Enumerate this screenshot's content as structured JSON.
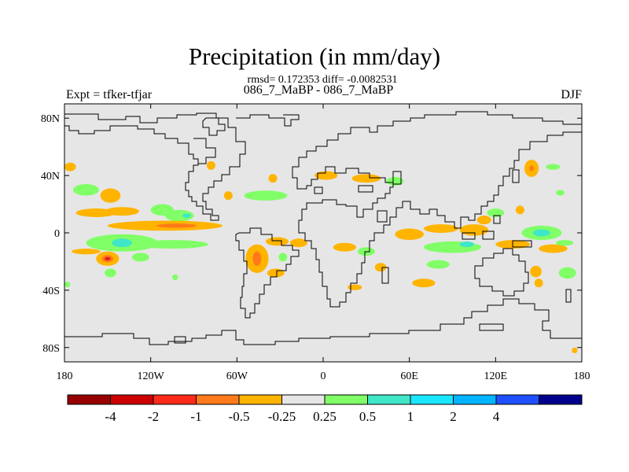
{
  "title": "Precipitation (in mm/day)",
  "stats_line": "rmsd= 0.172353 diff= -0.0082531",
  "case_line": "086_7_MaBP - 086_7_MaBP",
  "left_label": "Expt = tfker-tfjar",
  "right_label": "DJF",
  "map": {
    "lon_range": [
      -180,
      180
    ],
    "lat_range": [
      -90,
      90
    ],
    "background_color": "#e6e6e6",
    "y_ticks": [
      {
        "lat": 80,
        "label": "80N"
      },
      {
        "lat": 40,
        "label": "40N"
      },
      {
        "lat": 0,
        "label": "0"
      },
      {
        "lat": -40,
        "label": "40S"
      },
      {
        "lat": -80,
        "label": "80S"
      }
    ],
    "x_ticks": [
      {
        "lon": -180,
        "label": "180"
      },
      {
        "lon": -120,
        "label": "120W"
      },
      {
        "lon": -60,
        "label": "60W"
      },
      {
        "lon": 0,
        "label": "0"
      },
      {
        "lon": 60,
        "label": "60E"
      },
      {
        "lon": 120,
        "label": "120E"
      },
      {
        "lon": 180,
        "label": "180"
      }
    ],
    "anomaly_patches": [
      {
        "lon": -176,
        "lat": 46,
        "rx": 4,
        "ry": 3,
        "color": "#ffb400"
      },
      {
        "lon": -165,
        "lat": 30,
        "rx": 9,
        "ry": 4,
        "color": "#80ff66"
      },
      {
        "lon": -148,
        "lat": 26,
        "rx": 7,
        "ry": 5,
        "color": "#ffb400"
      },
      {
        "lon": -158,
        "lat": 14,
        "rx": 14,
        "ry": 3,
        "color": "#ffb400"
      },
      {
        "lon": -140,
        "lat": 15,
        "rx": 12,
        "ry": 3,
        "color": "#ffb400"
      },
      {
        "lon": -112,
        "lat": 16,
        "rx": 8,
        "ry": 4,
        "color": "#80ff66"
      },
      {
        "lon": -100,
        "lat": 12,
        "rx": 10,
        "ry": 4,
        "color": "#80ff66"
      },
      {
        "lon": -95,
        "lat": 12,
        "rx": 3,
        "ry": 1.5,
        "color": "#40e6c8"
      },
      {
        "lon": -110,
        "lat": 5,
        "rx": 40,
        "ry": 3.5,
        "color": "#ffb400"
      },
      {
        "lon": -102,
        "lat": 5,
        "rx": 14,
        "ry": 1.5,
        "color": "#ff7a1a"
      },
      {
        "lon": -140,
        "lat": -7,
        "rx": 25,
        "ry": 6,
        "color": "#80ff66"
      },
      {
        "lon": -140,
        "lat": -7,
        "rx": 7,
        "ry": 3,
        "color": "#40e6c8"
      },
      {
        "lon": -105,
        "lat": -8,
        "rx": 25,
        "ry": 3,
        "color": "#80ff66"
      },
      {
        "lon": -165,
        "lat": -13,
        "rx": 10,
        "ry": 2,
        "color": "#ffb400"
      },
      {
        "lon": -150,
        "lat": -18,
        "rx": 8,
        "ry": 5,
        "color": "#ffb400"
      },
      {
        "lon": -150,
        "lat": -18,
        "rx": 4,
        "ry": 2.5,
        "color": "#ff7a1a"
      },
      {
        "lon": -150,
        "lat": -18,
        "rx": 2,
        "ry": 1.2,
        "color": "#e61e1e"
      },
      {
        "lon": -127,
        "lat": -17,
        "rx": 6,
        "ry": 3,
        "color": "#80ff66"
      },
      {
        "lon": -148,
        "lat": -28,
        "rx": 4,
        "ry": 3,
        "color": "#80ff66"
      },
      {
        "lon": -178,
        "lat": -36,
        "rx": 2,
        "ry": 2,
        "color": "#80ff66"
      },
      {
        "lon": -103,
        "lat": -31,
        "rx": 2,
        "ry": 2,
        "color": "#80ff66"
      },
      {
        "lon": -32,
        "lat": -6,
        "rx": 8,
        "ry": 3,
        "color": "#ffb400"
      },
      {
        "lon": -17,
        "lat": -7,
        "rx": 6,
        "ry": 3,
        "color": "#ffb400"
      },
      {
        "lon": -46,
        "lat": -18,
        "rx": 8,
        "ry": 10,
        "color": "#ffb400"
      },
      {
        "lon": -46,
        "lat": -18,
        "rx": 3,
        "ry": 5,
        "color": "#ff7a1a"
      },
      {
        "lon": -28,
        "lat": -17,
        "rx": 3,
        "ry": 3,
        "color": "#80ff66"
      },
      {
        "lon": -33,
        "lat": -28,
        "rx": 6,
        "ry": 3,
        "color": "#ffb400"
      },
      {
        "lon": -35,
        "lat": 38,
        "rx": 3,
        "ry": 3,
        "color": "#ffb400"
      },
      {
        "lon": -78,
        "lat": 47,
        "rx": 3,
        "ry": 3,
        "color": "#ffb400"
      },
      {
        "lon": -66,
        "lat": 26,
        "rx": 3,
        "ry": 3,
        "color": "#ffb400"
      },
      {
        "lon": -40,
        "lat": 26,
        "rx": 15,
        "ry": 3.5,
        "color": "#80ff66"
      },
      {
        "lon": 2,
        "lat": 40,
        "rx": 8,
        "ry": 3,
        "color": "#ffb400"
      },
      {
        "lon": 30,
        "lat": 38,
        "rx": 10,
        "ry": 3,
        "color": "#ffb400"
      },
      {
        "lon": 50,
        "lat": 36,
        "rx": 6,
        "ry": 3,
        "color": "#80ff66"
      },
      {
        "lon": 15,
        "lat": -10,
        "rx": 8,
        "ry": 3,
        "color": "#ffb400"
      },
      {
        "lon": 30,
        "lat": -13,
        "rx": 6,
        "ry": 3,
        "color": "#80ff66"
      },
      {
        "lon": 40,
        "lat": -24,
        "rx": 4,
        "ry": 3,
        "color": "#ffb400"
      },
      {
        "lon": 22,
        "lat": -38,
        "rx": 5,
        "ry": 2,
        "color": "#ffb400"
      },
      {
        "lon": 60,
        "lat": -1,
        "rx": 10,
        "ry": 4,
        "color": "#ffb400"
      },
      {
        "lon": 82,
        "lat": 3,
        "rx": 12,
        "ry": 3,
        "color": "#ffb400"
      },
      {
        "lon": 105,
        "lat": 2,
        "rx": 10,
        "ry": 4,
        "color": "#ffb400"
      },
      {
        "lon": 90,
        "lat": -10,
        "rx": 20,
        "ry": 4,
        "color": "#80ff66"
      },
      {
        "lon": 100,
        "lat": -8,
        "rx": 5,
        "ry": 2,
        "color": "#40e6c8"
      },
      {
        "lon": 152,
        "lat": 0,
        "rx": 14,
        "ry": 5,
        "color": "#80ff66"
      },
      {
        "lon": 152,
        "lat": 0,
        "rx": 6,
        "ry": 2.5,
        "color": "#40e6c8"
      },
      {
        "lon": 132,
        "lat": -8,
        "rx": 12,
        "ry": 3,
        "color": "#ffb400"
      },
      {
        "lon": 160,
        "lat": -11,
        "rx": 10,
        "ry": 3,
        "color": "#ffb400"
      },
      {
        "lon": 168,
        "lat": -7,
        "rx": 6,
        "ry": 2,
        "color": "#80ff66"
      },
      {
        "lon": 112,
        "lat": 9,
        "rx": 5,
        "ry": 3,
        "color": "#ffb400"
      },
      {
        "lon": 120,
        "lat": 14,
        "rx": 6,
        "ry": 3,
        "color": "#80ff66"
      },
      {
        "lon": 145,
        "lat": 45,
        "rx": 5,
        "ry": 6,
        "color": "#ffb400"
      },
      {
        "lon": 145,
        "lat": 45,
        "rx": 1.5,
        "ry": 2,
        "color": "#ff7a1a"
      },
      {
        "lon": 160,
        "lat": 46,
        "rx": 5,
        "ry": 2,
        "color": "#80ff66"
      },
      {
        "lon": 165,
        "lat": 28,
        "rx": 3,
        "ry": 2,
        "color": "#80ff66"
      },
      {
        "lon": 80,
        "lat": -22,
        "rx": 8,
        "ry": 3,
        "color": "#80ff66"
      },
      {
        "lon": 70,
        "lat": -35,
        "rx": 8,
        "ry": 3,
        "color": "#ffb400"
      },
      {
        "lon": 148,
        "lat": -27,
        "rx": 4,
        "ry": 4,
        "color": "#ffb400"
      },
      {
        "lon": 170,
        "lat": -28,
        "rx": 6,
        "ry": 4,
        "color": "#80ff66"
      },
      {
        "lon": 150,
        "lat": -35,
        "rx": 3,
        "ry": 3,
        "color": "#ffb400"
      },
      {
        "lon": 137,
        "lat": 16,
        "rx": 3,
        "ry": 3,
        "color": "#ffb400"
      },
      {
        "lon": 175,
        "lat": -82,
        "rx": 2,
        "ry": 2,
        "color": "#ffb400"
      }
    ]
  },
  "colorbar": {
    "colors": [
      "#960000",
      "#cc0000",
      "#ff2a1a",
      "#ff7a1a",
      "#ffb400",
      "#e6e6e6",
      "#80ff66",
      "#40e6c8",
      "#1ae6ff",
      "#00b4ff",
      "#1e50ff",
      "#00008c"
    ],
    "labels": [
      "-4",
      "-2",
      "-1",
      "-0.5",
      "-0.25",
      "0.25",
      "0.5",
      "1",
      "2",
      "4"
    ]
  }
}
